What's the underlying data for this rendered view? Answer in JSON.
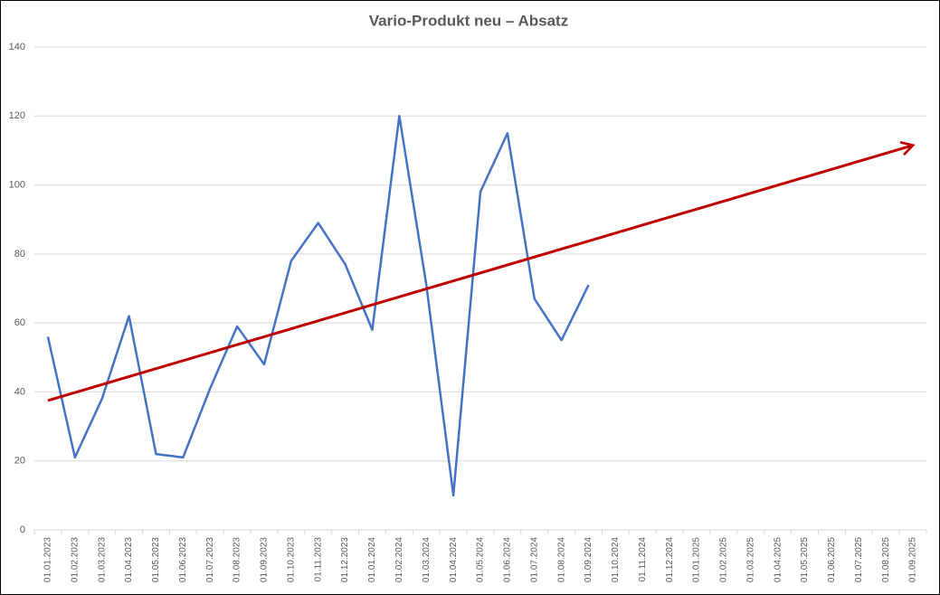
{
  "chart_data": {
    "type": "line",
    "title": "Vario-Produkt  neu – Absatz",
    "categories": [
      "01.01.2023",
      "01.02.2023",
      "01.03.2023",
      "01.04.2023",
      "01.05.2023",
      "01.06.2023",
      "01.07.2023",
      "01.08.2023",
      "01.09.2023",
      "01.10.2023",
      "01.11.2023",
      "01.12.2023",
      "01.01.2024",
      "01.02.2024",
      "01.03.2024",
      "01.04.2024",
      "01.05.2024",
      "01.06.2024",
      "01.07.2024",
      "01.08.2024",
      "01.09.2024",
      "01.10.2024",
      "01.11.2024",
      "01.12.2024",
      "01.01.2025",
      "01.02.2025",
      "01.03.2025",
      "01.04.2025",
      "01.05.2025",
      "01.06.2025",
      "01.07.2025",
      "01.08.2025",
      "01.09.2025"
    ],
    "series": [
      {
        "color": "#4472c4",
        "values": [
          56,
          21,
          38,
          62,
          22,
          21,
          41,
          59,
          48,
          78,
          89,
          77,
          58,
          120,
          71,
          10,
          98,
          115,
          67,
          55,
          71,
          null,
          null,
          null,
          null,
          null,
          null,
          null,
          null,
          null,
          null,
          null,
          null
        ]
      }
    ],
    "trendline": {
      "color": "#c00000",
      "values": [
        37.5,
        111.5
      ]
    },
    "ylim": [
      0,
      140
    ],
    "yticks": [
      0,
      20,
      40,
      60,
      80,
      100,
      120,
      140
    ],
    "grid": true
  }
}
